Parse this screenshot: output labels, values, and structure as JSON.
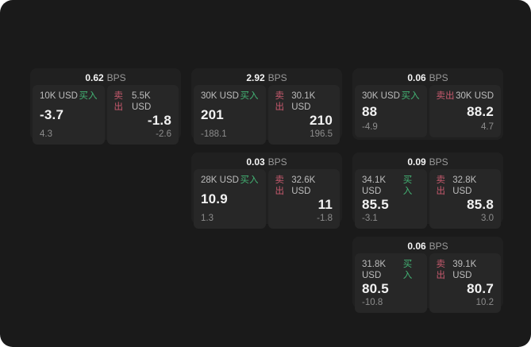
{
  "colors": {
    "screen_bg": "#1a1a1a",
    "card_bg": "#202020",
    "panel_bg": "#272727",
    "buy": "#43b374",
    "sell": "#c75a6e"
  },
  "labels": {
    "buy": "买入",
    "sell": "卖出",
    "bps": "BPS"
  },
  "cards": [
    {
      "bps": "0.62",
      "buy": {
        "amount": "10K USD",
        "price": "-3.7",
        "delta": "4.3"
      },
      "sell": {
        "amount": "5.5K USD",
        "price": "-1.8",
        "delta": "-2.6"
      }
    },
    {
      "bps": "2.92",
      "buy": {
        "amount": "30K USD",
        "price": "201",
        "delta": "-188.1"
      },
      "sell": {
        "amount": "30.1K USD",
        "price": "210",
        "delta": "196.5"
      }
    },
    {
      "bps": "0.06",
      "buy": {
        "amount": "30K USD",
        "price": "88",
        "delta": "-4.9"
      },
      "sell": {
        "amount": "30K USD",
        "price": "88.2",
        "delta": "4.7"
      }
    },
    {
      "bps": "0.03",
      "buy": {
        "amount": "28K USD",
        "price": "10.9",
        "delta": "1.3"
      },
      "sell": {
        "amount": "32.6K USD",
        "price": "11",
        "delta": "-1.8"
      }
    },
    {
      "bps": "0.09",
      "buy": {
        "amount": "34.1K USD",
        "price": "85.5",
        "delta": "-3.1"
      },
      "sell": {
        "amount": "32.8K USD",
        "price": "85.8",
        "delta": "3.0"
      }
    },
    {
      "bps": "0.06",
      "buy": {
        "amount": "31.8K USD",
        "price": "80.5",
        "delta": "-10.8"
      },
      "sell": {
        "amount": "39.1K USD",
        "price": "80.7",
        "delta": "10.2"
      }
    }
  ]
}
